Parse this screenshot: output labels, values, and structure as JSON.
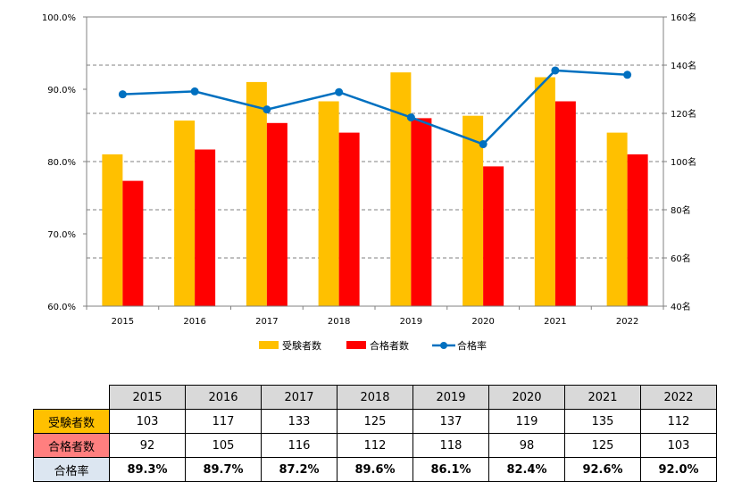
{
  "chart_data": {
    "type": "bar+line",
    "categories": [
      "2015",
      "2016",
      "2017",
      "2018",
      "2019",
      "2020",
      "2021",
      "2022"
    ],
    "series": [
      {
        "name": "受験者数",
        "type": "bar",
        "axis": "right",
        "color": "#ffc000",
        "values": [
          103,
          117,
          133,
          125,
          137,
          119,
          135,
          112
        ]
      },
      {
        "name": "合格者数",
        "type": "bar",
        "axis": "right",
        "color": "#ff0000",
        "values": [
          92,
          105,
          116,
          112,
          118,
          98,
          125,
          103
        ]
      },
      {
        "name": "合格率",
        "type": "line",
        "axis": "left",
        "color": "#0070c0",
        "values": [
          89.3,
          89.7,
          87.2,
          89.6,
          86.1,
          82.4,
          92.6,
          92.0
        ]
      }
    ],
    "left_axis": {
      "ylim": [
        60,
        100
      ],
      "ticks": [
        "60.0%",
        "70.0%",
        "80.0%",
        "90.0%",
        "100.0%"
      ]
    },
    "right_axis": {
      "ylim": [
        40,
        160
      ],
      "ticks": [
        "40名",
        "60名",
        "80名",
        "100名",
        "120名",
        "140名",
        "160名"
      ]
    },
    "grid": true,
    "legend_position": "bottom"
  },
  "table": {
    "years": [
      "2015",
      "2016",
      "2017",
      "2018",
      "2019",
      "2020",
      "2021",
      "2022"
    ],
    "rows": [
      {
        "label": "受験者数",
        "values": [
          "103",
          "117",
          "133",
          "125",
          "137",
          "119",
          "135",
          "112"
        ]
      },
      {
        "label": "合格者数",
        "values": [
          "92",
          "105",
          "116",
          "112",
          "118",
          "98",
          "125",
          "103"
        ]
      },
      {
        "label": "合格率",
        "values": [
          "89.3%",
          "89.7%",
          "87.2%",
          "89.6%",
          "86.1%",
          "82.4%",
          "92.6%",
          "92.0%"
        ]
      }
    ]
  }
}
